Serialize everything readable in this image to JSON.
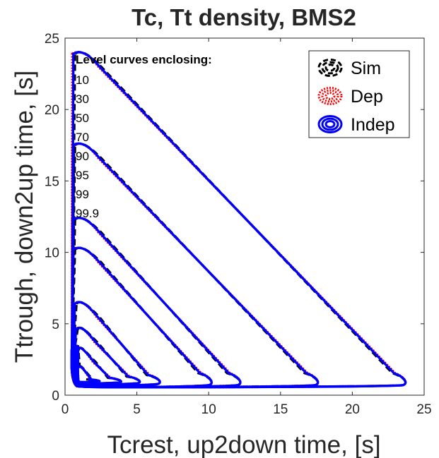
{
  "chart_data": {
    "type": "contour",
    "title": "Tc, Tt density, BMS2",
    "xlabel": "Tcrest, up2down time, [s]",
    "ylabel": "Ttrough, down2up time, [s]",
    "xlim": [
      0,
      25
    ],
    "ylim": [
      0,
      25
    ],
    "xticks": [
      "0",
      "5",
      "10",
      "15",
      "20",
      "25"
    ],
    "yticks": [
      "0",
      "5",
      "10",
      "15",
      "20",
      "25"
    ],
    "grid": false,
    "legend": {
      "position": "top-right",
      "entries": [
        {
          "name": "Sim",
          "color": "#000000",
          "style": "dashed"
        },
        {
          "name": "Dep",
          "color": "#ff0000",
          "style": "dotted"
        },
        {
          "name": "Indep",
          "color": "#0000ff",
          "style": "solid"
        }
      ]
    },
    "level_annotation": {
      "heading": "Level curves enclosing:",
      "levels": [
        "10",
        "30",
        "50",
        "70",
        "90",
        "95",
        "99",
        "99.9"
      ]
    },
    "series": [
      {
        "name": "Indep",
        "color": "#0000ff",
        "contours": [
          {
            "level": "10",
            "peak": [
              1.0,
              1.0
            ],
            "x_max": 2.5,
            "y_max": 2.0
          },
          {
            "level": "30",
            "peak": [
              1.0,
              1.0
            ],
            "x_max": 4.0,
            "y_max": 3.3
          },
          {
            "level": "50",
            "peak": [
              1.0,
              1.0
            ],
            "x_max": 5.3,
            "y_max": 4.7
          },
          {
            "level": "70",
            "peak": [
              1.0,
              1.0
            ],
            "x_max": 6.7,
            "y_max": 6.5
          },
          {
            "level": "90",
            "peak": [
              1.0,
              1.0
            ],
            "x_max": 10.3,
            "y_max": 10.3
          },
          {
            "level": "95",
            "peak": [
              1.0,
              1.0
            ],
            "x_max": 12.3,
            "y_max": 12.4
          },
          {
            "level": "99",
            "peak": [
              1.0,
              1.0
            ],
            "x_max": 17.7,
            "y_max": 17.6
          },
          {
            "level": "99.9",
            "peak": [
              1.0,
              1.0
            ],
            "x_max": 23.8,
            "y_max": 24.0
          }
        ]
      },
      {
        "name": "Dep",
        "color": "#ff0000",
        "contours_follow": "Indep"
      },
      {
        "name": "Sim",
        "color": "#000000",
        "contours_follow": "Indep"
      }
    ]
  }
}
